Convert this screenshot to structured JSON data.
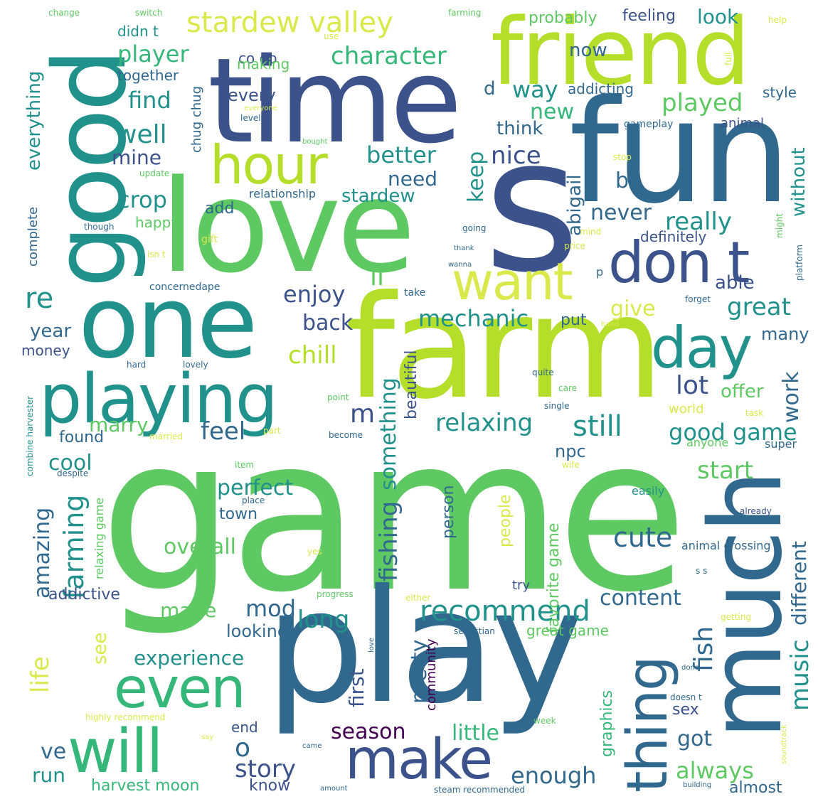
{
  "colors": {
    "c1": "#440154",
    "c2": "#3b528b",
    "c3": "#31688e",
    "c4": "#21918c",
    "c5": "#35b779",
    "c6": "#5ec962",
    "c7": "#b5de2b",
    "c8": "#d9e94b",
    "c9": "#f4f89a",
    "c10": "#9fd86b"
  },
  "words": [
    {
      "text": "game",
      "color": "#5ec962"
    },
    {
      "text": "play",
      "color": "#31688e"
    },
    {
      "text": "farm",
      "color": "#b5de2b"
    },
    {
      "text": "fun",
      "color": "#31688e"
    },
    {
      "text": "love",
      "color": "#5ec962"
    },
    {
      "text": "time",
      "color": "#3b528b"
    },
    {
      "text": "s",
      "color": "#3b528b"
    },
    {
      "text": "friend",
      "color": "#b5de2b"
    },
    {
      "text": "one",
      "color": "#21918c"
    },
    {
      "text": "good",
      "color": "#21918c"
    },
    {
      "text": "much",
      "color": "#31688e"
    },
    {
      "text": "playing",
      "color": "#21918c"
    },
    {
      "text": "hour",
      "color": "#b5de2b"
    },
    {
      "text": "don t",
      "color": "#3b528b"
    },
    {
      "text": "want",
      "color": "#d9e94b"
    },
    {
      "text": "day",
      "color": "#21918c"
    },
    {
      "text": "even",
      "color": "#35b779"
    },
    {
      "text": "will",
      "color": "#35b779"
    },
    {
      "text": "make",
      "color": "#3b528b"
    },
    {
      "text": "thing",
      "color": "#31688e"
    },
    {
      "text": "stardew valley",
      "color": "#d9e94b"
    },
    {
      "text": "character",
      "color": "#35b779"
    },
    {
      "text": "player",
      "color": "#35b779"
    },
    {
      "text": "well",
      "color": "#21918c"
    },
    {
      "text": "find",
      "color": "#21918c"
    },
    {
      "text": "mine",
      "color": "#3b528b"
    },
    {
      "text": "crop",
      "color": "#21918c"
    },
    {
      "text": "better",
      "color": "#21918c"
    },
    {
      "text": "need",
      "color": "#31688e"
    },
    {
      "text": "nice",
      "color": "#3b528b"
    },
    {
      "text": "way",
      "color": "#21918c"
    },
    {
      "text": "new",
      "color": "#35b779"
    },
    {
      "text": "think",
      "color": "#31688e"
    },
    {
      "text": "played",
      "color": "#5ec962"
    },
    {
      "text": "really",
      "color": "#21918c"
    },
    {
      "text": "never",
      "color": "#31688e"
    },
    {
      "text": "able",
      "color": "#3b528b"
    },
    {
      "text": "great",
      "color": "#21918c"
    },
    {
      "text": "enjoy",
      "color": "#3b528b"
    },
    {
      "text": "ll",
      "color": "#5ec962"
    },
    {
      "text": "give",
      "color": "#d9e94b"
    },
    {
      "text": "mechanic",
      "color": "#21918c"
    },
    {
      "text": "put",
      "color": "#31688e"
    },
    {
      "text": "back",
      "color": "#3b528b"
    },
    {
      "text": "chill",
      "color": "#b5de2b"
    },
    {
      "text": "re",
      "color": "#21918c"
    },
    {
      "text": "year",
      "color": "#31688e"
    },
    {
      "text": "money",
      "color": "#3b528b"
    },
    {
      "text": "lot",
      "color": "#3b528b"
    },
    {
      "text": "offer",
      "color": "#5ec962"
    },
    {
      "text": "many",
      "color": "#31688e"
    },
    {
      "text": "work",
      "color": "#31688e"
    },
    {
      "text": "relaxing",
      "color": "#21918c"
    },
    {
      "text": "still",
      "color": "#21918c"
    },
    {
      "text": "good game",
      "color": "#21918c"
    },
    {
      "text": "feel",
      "color": "#31688e"
    },
    {
      "text": "m",
      "color": "#3b528b"
    },
    {
      "text": "marry",
      "color": "#5ec962"
    },
    {
      "text": "found",
      "color": "#31688e"
    },
    {
      "text": "cool",
      "color": "#21918c"
    },
    {
      "text": "amazing",
      "color": "#31688e"
    },
    {
      "text": "farming",
      "color": "#21918c"
    },
    {
      "text": "perfect",
      "color": "#21918c"
    },
    {
      "text": "town",
      "color": "#31688e"
    },
    {
      "text": "overall",
      "color": "#5ec962"
    },
    {
      "text": "npc",
      "color": "#31688e"
    },
    {
      "text": "start",
      "color": "#5ec962"
    },
    {
      "text": "cute",
      "color": "#31688e"
    },
    {
      "text": "content",
      "color": "#31688e"
    },
    {
      "text": "recommend",
      "color": "#21918c"
    },
    {
      "text": "mod",
      "color": "#31688e"
    },
    {
      "text": "made",
      "color": "#5ec962"
    },
    {
      "text": "long",
      "color": "#21918c"
    },
    {
      "text": "looking",
      "color": "#31688e"
    },
    {
      "text": "addictive",
      "color": "#3b528b"
    },
    {
      "text": "experience",
      "color": "#21918c"
    },
    {
      "text": "life",
      "color": "#d9e94b"
    },
    {
      "text": "see",
      "color": "#d9e94b"
    },
    {
      "text": "ve",
      "color": "#31688e"
    },
    {
      "text": "run",
      "color": "#21918c"
    },
    {
      "text": "o",
      "color": "#31688e"
    },
    {
      "text": "story",
      "color": "#3b528b"
    },
    {
      "text": "season",
      "color": "#440154"
    },
    {
      "text": "little",
      "color": "#35b779"
    },
    {
      "text": "enough",
      "color": "#31688e"
    },
    {
      "text": "always",
      "color": "#5ec962"
    },
    {
      "text": "got",
      "color": "#31688e"
    },
    {
      "text": "sex",
      "color": "#3b528b"
    },
    {
      "text": "almost",
      "color": "#31688e"
    },
    {
      "text": "harvest moon",
      "color": "#35b779"
    },
    {
      "text": "know",
      "color": "#3b528b"
    },
    {
      "text": "end",
      "color": "#3b528b"
    },
    {
      "text": "great game",
      "color": "#5ec962"
    },
    {
      "text": "fish",
      "color": "#31688e"
    },
    {
      "text": "music",
      "color": "#21918c"
    },
    {
      "text": "different",
      "color": "#31688e"
    },
    {
      "text": "favorite game",
      "color": "#5ec962"
    },
    {
      "text": "people",
      "color": "#d9e94b"
    },
    {
      "text": "person",
      "color": "#31688e"
    },
    {
      "text": "fishing",
      "color": "#31688e"
    },
    {
      "text": "something",
      "color": "#21918c"
    },
    {
      "text": "beautiful",
      "color": "#3b528b"
    },
    {
      "text": "pretty",
      "color": "#31688e"
    },
    {
      "text": "community",
      "color": "#440154"
    },
    {
      "text": "first",
      "color": "#3b528b"
    },
    {
      "text": "graphics",
      "color": "#35b779"
    },
    {
      "text": "abigail",
      "color": "#31688e"
    },
    {
      "text": "without",
      "color": "#21918c"
    },
    {
      "text": "keep",
      "color": "#21918c"
    },
    {
      "text": "b",
      "color": "#31688e"
    },
    {
      "text": "everything",
      "color": "#21918c"
    },
    {
      "text": "complete",
      "color": "#31688e"
    },
    {
      "text": "now",
      "color": "#31688e"
    },
    {
      "text": "co op",
      "color": "#3b528b"
    },
    {
      "text": "making",
      "color": "#5ec962"
    },
    {
      "text": "together",
      "color": "#31688e"
    },
    {
      "text": "didn t",
      "color": "#21918c"
    },
    {
      "text": "every",
      "color": "#3b528b"
    },
    {
      "text": "chug chug",
      "color": "#31688e"
    },
    {
      "text": "probably",
      "color": "#5ec962"
    },
    {
      "text": "feeling",
      "color": "#3b528b"
    },
    {
      "text": "look",
      "color": "#21918c"
    },
    {
      "text": "style",
      "color": "#31688e"
    },
    {
      "text": "addicting",
      "color": "#31688e"
    },
    {
      "text": "animal",
      "color": "#3b528b"
    },
    {
      "text": "gameplay",
      "color": "#31688e"
    },
    {
      "text": "d",
      "color": "#31688e"
    },
    {
      "text": "relationship",
      "color": "#31688e"
    },
    {
      "text": "stardew",
      "color": "#21918c"
    },
    {
      "text": "add",
      "color": "#31688e"
    },
    {
      "text": "happy",
      "color": "#5ec962"
    },
    {
      "text": "definitely",
      "color": "#3b528b"
    },
    {
      "text": "animal crossing",
      "color": "#31688e"
    },
    {
      "text": "easily",
      "color": "#21918c"
    },
    {
      "text": "relaxing game",
      "color": "#5ec962"
    },
    {
      "text": "combine harvester",
      "color": "#21918c"
    },
    {
      "text": "world",
      "color": "#d9e94b"
    },
    {
      "text": "anyone",
      "color": "#5ec962"
    },
    {
      "text": "super",
      "color": "#31688e"
    },
    {
      "text": "try",
      "color": "#3b528b"
    },
    {
      "text": "concernedape",
      "color": "#31688e"
    },
    {
      "text": "update",
      "color": "#5ec962"
    },
    {
      "text": "change",
      "color": "#5ec962"
    },
    {
      "text": "switch",
      "color": "#5ec962"
    },
    {
      "text": "farming",
      "color": "#5ec962"
    },
    {
      "text": "use",
      "color": "#d9e94b"
    },
    {
      "text": "help",
      "color": "#d9e94b"
    },
    {
      "text": "full",
      "color": "#d9e94b"
    },
    {
      "text": "level",
      "color": "#31688e"
    },
    {
      "text": "everyone",
      "color": "#d9e94b"
    },
    {
      "text": "bought",
      "color": "#5ec962"
    },
    {
      "text": "though",
      "color": "#31688e"
    },
    {
      "text": "gift",
      "color": "#d9e94b"
    },
    {
      "text": "isn t",
      "color": "#d9e94b"
    },
    {
      "text": "going",
      "color": "#31688e"
    },
    {
      "text": "thank",
      "color": "#31688e"
    },
    {
      "text": "wanna",
      "color": "#31688e"
    },
    {
      "text": "price",
      "color": "#d9e94b"
    },
    {
      "text": "mind",
      "color": "#d9e94b"
    },
    {
      "text": "stop",
      "color": "#d9e94b"
    },
    {
      "text": "might",
      "color": "#5ec962"
    },
    {
      "text": "platform",
      "color": "#31688e"
    },
    {
      "text": "forget",
      "color": "#31688e"
    },
    {
      "text": "take",
      "color": "#31688e"
    },
    {
      "text": "hard",
      "color": "#31688e"
    },
    {
      "text": "lovely",
      "color": "#31688e"
    },
    {
      "text": "point",
      "color": "#5ec962"
    },
    {
      "text": "quite",
      "color": "#31688e"
    },
    {
      "text": "care",
      "color": "#5ec962"
    },
    {
      "text": "single",
      "color": "#31688e"
    },
    {
      "text": "part",
      "color": "#d9e94b"
    },
    {
      "text": "become",
      "color": "#31688e"
    },
    {
      "text": "married",
      "color": "#d9e94b"
    },
    {
      "text": "task",
      "color": "#d9e94b"
    },
    {
      "text": "item",
      "color": "#5ec962"
    },
    {
      "text": "despite",
      "color": "#31688e"
    },
    {
      "text": "wife",
      "color": "#d9e94b"
    },
    {
      "text": "place",
      "color": "#31688e"
    },
    {
      "text": "yes",
      "color": "#d9e94b"
    },
    {
      "text": "already",
      "color": "#3b528b"
    },
    {
      "text": "progress",
      "color": "#5ec962"
    },
    {
      "text": "either",
      "color": "#d9e94b"
    },
    {
      "text": "getting",
      "color": "#d9e94b"
    },
    {
      "text": "sebastian",
      "color": "#31688e"
    },
    {
      "text": "done",
      "color": "#31688e"
    },
    {
      "text": "doesn t",
      "color": "#31688e"
    },
    {
      "text": "highly recommend",
      "color": "#d9e94b"
    },
    {
      "text": "week",
      "color": "#5ec962"
    },
    {
      "text": "say",
      "color": "#d9e94b"
    },
    {
      "text": "came",
      "color": "#31688e"
    },
    {
      "text": "amount",
      "color": "#31688e"
    },
    {
      "text": "steam recommended",
      "color": "#31688e"
    },
    {
      "text": "building",
      "color": "#31688e"
    },
    {
      "text": "soundtrack",
      "color": "#d9e94b"
    },
    {
      "text": "love",
      "color": "#31688e"
    },
    {
      "text": "p",
      "color": "#31688e"
    },
    {
      "text": "hand",
      "color": "#d9e94b"
    },
    {
      "text": "s s",
      "color": "#31688e"
    }
  ]
}
